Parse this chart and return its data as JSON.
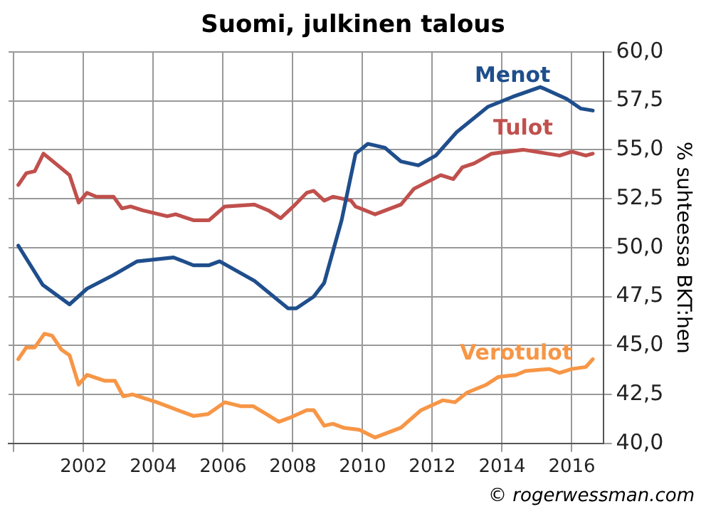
{
  "chart_data": {
    "type": "line",
    "title": "Suomi, julkinen talous",
    "ylabel": "% suhteessa BKT:hen",
    "annotations": [
      "© rogerwessman.com"
    ],
    "xlim": [
      1999.85,
      2016.9
    ],
    "xticks": [
      {
        "value": 2000,
        "label": null
      },
      2002,
      2004,
      2006,
      2008,
      2010,
      2012,
      2014,
      2016
    ],
    "ylim": [
      40,
      60
    ],
    "yticks": [
      {
        "value": 40,
        "label": "40,0"
      },
      {
        "value": 42.5,
        "label": "42,5"
      },
      {
        "value": 45,
        "label": "45,0"
      },
      {
        "value": 47.5,
        "label": "47,5"
      },
      {
        "value": 50,
        "label": "50,0"
      },
      {
        "value": 52.5,
        "label": "52,5"
      },
      {
        "value": 55,
        "label": "55,0"
      },
      {
        "value": 57.5,
        "label": "57,5"
      },
      {
        "value": 60,
        "label": "60,0"
      }
    ],
    "grid": true,
    "legend": false,
    "marker": "none",
    "line_style": "solid",
    "series": [
      {
        "name": "Menot",
        "color": "#1f4e8c",
        "x": [
          2000.13,
          2000.83,
          2001.6,
          2002.1,
          2002.86,
          2003.54,
          2004.58,
          2005.15,
          2005.6,
          2005.9,
          2006.9,
          2007.86,
          2008.1,
          2008.6,
          2008.9,
          2009.4,
          2009.8,
          2010.15,
          2010.64,
          2011.1,
          2011.6,
          2012.1,
          2012.7,
          2013.6,
          2014.3,
          2015.1,
          2015.85,
          2016.26,
          2016.6
        ],
        "values": [
          50.1,
          48.1,
          47.1,
          47.9,
          48.6,
          49.3,
          49.5,
          49.1,
          49.1,
          49.3,
          48.3,
          46.9,
          46.9,
          47.5,
          48.2,
          51.4,
          54.8,
          55.3,
          55.1,
          54.4,
          54.2,
          54.7,
          55.9,
          57.2,
          57.7,
          58.2,
          57.6,
          57.1,
          57.0
        ]
      },
      {
        "name": "Tulot",
        "color": "#c0504d",
        "x": [
          2000.13,
          2000.36,
          2000.6,
          2000.85,
          2001.33,
          2001.6,
          2001.86,
          2002.1,
          2002.37,
          2002.86,
          2003.1,
          2003.35,
          2003.7,
          2004.4,
          2004.64,
          2005.15,
          2005.6,
          2006.05,
          2006.9,
          2007.3,
          2007.65,
          2008.07,
          2008.4,
          2008.6,
          2008.9,
          2009.15,
          2009.67,
          2009.8,
          2010.36,
          2011.1,
          2011.47,
          2011.8,
          2012.24,
          2012.6,
          2012.86,
          2013.2,
          2013.7,
          2014.6,
          2015.3,
          2015.65,
          2016.0,
          2016.4,
          2016.6
        ],
        "values": [
          53.2,
          53.8,
          53.9,
          54.8,
          54.1,
          53.7,
          52.3,
          52.8,
          52.6,
          52.6,
          52.0,
          52.1,
          51.9,
          51.6,
          51.7,
          51.4,
          51.4,
          52.1,
          52.2,
          51.9,
          51.5,
          52.2,
          52.8,
          52.9,
          52.4,
          52.6,
          52.4,
          52.1,
          51.7,
          52.2,
          53.0,
          53.3,
          53.7,
          53.5,
          54.1,
          54.3,
          54.8,
          55.0,
          54.8,
          54.7,
          54.9,
          54.7,
          54.8
        ]
      },
      {
        "name": "Verotulot",
        "color": "#f79646",
        "x": [
          2000.13,
          2000.36,
          2000.6,
          2000.88,
          2001.1,
          2001.36,
          2001.6,
          2001.86,
          2002.1,
          2002.6,
          2002.9,
          2003.14,
          2003.4,
          2004.1,
          2004.4,
          2005.15,
          2005.57,
          2006.05,
          2006.5,
          2006.86,
          2007.24,
          2007.6,
          2007.9,
          2008.4,
          2008.6,
          2008.9,
          2009.15,
          2009.45,
          2009.9,
          2010.36,
          2011.1,
          2011.68,
          2012.3,
          2012.65,
          2013.0,
          2013.55,
          2013.9,
          2014.4,
          2014.67,
          2015.36,
          2015.65,
          2016.0,
          2016.4,
          2016.6
        ],
        "values": [
          44.3,
          44.9,
          44.9,
          45.6,
          45.5,
          44.8,
          44.5,
          43.0,
          43.5,
          43.2,
          43.2,
          42.4,
          42.5,
          42.1,
          41.9,
          41.4,
          41.5,
          42.1,
          41.9,
          41.9,
          41.5,
          41.1,
          41.3,
          41.7,
          41.7,
          40.9,
          41.0,
          40.8,
          40.7,
          40.3,
          40.8,
          41.7,
          42.2,
          42.1,
          42.6,
          43.0,
          43.4,
          43.5,
          43.7,
          43.8,
          43.6,
          43.8,
          43.9,
          44.3
        ]
      }
    ]
  }
}
